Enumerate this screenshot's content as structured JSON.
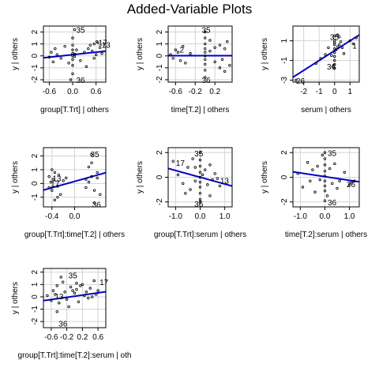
{
  "title": "Added-Variable Plots",
  "colors": {
    "line": "#0000CD",
    "grid": "#D3D3D3",
    "points": "#000000",
    "frame": "#000000"
  },
  "chart_data": [
    {
      "type": "scatter",
      "xlabel": "group[T.Trt] | others",
      "ylabel": "y | others",
      "xlim": [
        -0.75,
        0.85
      ],
      "ylim": [
        -2.2,
        2.5
      ],
      "xticks": [
        -0.6,
        0.0,
        0.6
      ],
      "xtick_labels": [
        "-0.6",
        "0.0",
        "0.6"
      ],
      "yticks": [
        -2,
        -1,
        0,
        1,
        2
      ],
      "ytick_labels": [
        "-2",
        "-1",
        "0",
        "1",
        "2"
      ],
      "grid": true,
      "fit_line": {
        "intercept": 0.1,
        "slope": 0.35
      },
      "x": [
        -0.6,
        -0.55,
        -0.5,
        -0.45,
        -0.4,
        -0.3,
        -0.2,
        -0.1,
        0,
        0,
        0,
        0,
        0,
        0,
        0,
        0,
        0.1,
        0.2,
        0.3,
        0.45,
        0.5,
        0.55,
        0.6,
        0.65,
        0.7,
        0.75,
        0.55,
        0.62,
        0.05,
        -0.05,
        0.35,
        0.4,
        0.05,
        0.05
      ],
      "y": [
        -0.1,
        0.3,
        -0.5,
        0.6,
        0.1,
        -0.2,
        0.8,
        -0.6,
        1.5,
        0.9,
        0.5,
        0.2,
        0,
        -0.3,
        -0.8,
        -1.5,
        0.5,
        -0.4,
        0.3,
        0.9,
        0.4,
        -0.2,
        0.1,
        1.1,
        0.7,
        0.2,
        1.0,
        1.2,
        2.2,
        -2.0,
        -0.9,
        0.6,
        0.15,
        -0.05
      ],
      "point_labels": [
        {
          "x": 0.05,
          "y": 2.2,
          "text": "35"
        },
        {
          "x": 0.62,
          "y": 1.15,
          "text": "17"
        },
        {
          "x": 0.7,
          "y": 0.95,
          "text": "13"
        },
        {
          "x": 0.05,
          "y": -2.0,
          "text": "36"
        }
      ]
    },
    {
      "type": "scatter",
      "xlabel": "time[T.2] | others",
      "ylabel": "y | others",
      "xlim": [
        -0.75,
        0.55
      ],
      "ylim": [
        -2.2,
        2.5
      ],
      "xticks": [
        -0.6,
        -0.2,
        0.2
      ],
      "xtick_labels": [
        "-0.6",
        "-0.2",
        "0.2"
      ],
      "yticks": [
        -2,
        -1,
        0,
        1,
        2
      ],
      "ytick_labels": [
        "-2",
        "-1",
        "0",
        "1",
        "2"
      ],
      "grid": true,
      "fit_line": {
        "intercept": 0.02,
        "slope": 0.0
      },
      "x": [
        -0.7,
        -0.65,
        -0.6,
        -0.55,
        -0.5,
        -0.45,
        -0.4,
        -0.3,
        0,
        0,
        0,
        0,
        0,
        0,
        0,
        0,
        0,
        0,
        0.1,
        0.2,
        0.3,
        0.35,
        0.4,
        0.45,
        0.5,
        0.3,
        0.1,
        0.2,
        0.4
      ],
      "y": [
        0.1,
        -0.2,
        0.5,
        0.3,
        -0.4,
        0.8,
        -0.6,
        0.2,
        2.0,
        1.5,
        1.0,
        0.6,
        0.3,
        0.0,
        -0.3,
        -0.7,
        -1.2,
        -1.8,
        0.4,
        -0.5,
        0.9,
        -0.3,
        0.6,
        1.2,
        -0.8,
        -1.0,
        1.3,
        0.7,
        -1.3
      ],
      "point_labels": [
        {
          "x": -0.1,
          "y": 2.2,
          "text": "35"
        },
        {
          "x": -0.55,
          "y": 0.55,
          "text": "2"
        },
        {
          "x": -0.1,
          "y": -2.0,
          "text": "36"
        }
      ]
    },
    {
      "type": "scatter",
      "xlabel": "serum | others",
      "ylabel": "y | others",
      "xlim": [
        -2.7,
        1.6
      ],
      "ylim": [
        -3.2,
        2.5
      ],
      "xticks": [
        -2,
        -1,
        0,
        1
      ],
      "xtick_labels": [
        "-2",
        "-1",
        "0",
        "1"
      ],
      "yticks": [
        -3,
        -1,
        1
      ],
      "ytick_labels": [
        "-3",
        "-1",
        "1"
      ],
      "grid": true,
      "fit_line": {
        "intercept": 0.0,
        "slope": 1.0
      },
      "x": [
        -2.5,
        -1.2,
        -0.9,
        -0.6,
        -0.4,
        -0.2,
        0,
        0,
        0,
        0,
        0,
        0,
        0,
        0,
        0,
        0,
        0.1,
        0.2,
        0.3,
        0.4,
        0.5,
        0.6,
        1.0,
        1.2,
        1.4,
        0.2,
        -0.1,
        0.3
      ],
      "y": [
        -3.0,
        -1.3,
        -0.8,
        -0.4,
        0.3,
        -0.5,
        1.5,
        1.0,
        0.6,
        0.2,
        -0.2,
        -0.6,
        -1.0,
        -1.4,
        -1.8,
        0.8,
        0.1,
        0.4,
        0.6,
        0.9,
        0.3,
        -0.3,
        1.0,
        0.7,
        1.3,
        1.6,
        -1.6,
        1.4
      ],
      "point_labels": [
        {
          "x": -0.4,
          "y": 1.4,
          "text": "35"
        },
        {
          "x": 1.05,
          "y": 0.55,
          "text": "1"
        },
        {
          "x": -0.6,
          "y": -1.6,
          "text": "36"
        },
        {
          "x": -2.6,
          "y": -3.05,
          "text": "26"
        }
      ]
    },
    {
      "type": "scatter",
      "xlabel": "group[T.Trt]:time[T.2] | others",
      "ylabel": "y | others",
      "xlim": [
        -0.55,
        0.55
      ],
      "ylim": [
        -1.7,
        2.6
      ],
      "xticks": [
        -0.4,
        0.0
      ],
      "xtick_labels": [
        "-0.4",
        "0.0"
      ],
      "yticks": [
        -1,
        0,
        1,
        2
      ],
      "ytick_labels": [
        "-1",
        "0",
        "1",
        "2"
      ],
      "grid": true,
      "fit_line": {
        "intercept": 0.15,
        "slope": 1.15
      },
      "x": [
        -0.45,
        -0.42,
        -0.4,
        -0.38,
        -0.35,
        -0.3,
        -0.28,
        -0.25,
        -0.2,
        -0.15,
        -0.35,
        -0.3,
        -0.4,
        -0.45,
        0.2,
        0.25,
        0.3,
        0.35,
        0.4,
        0.3,
        0.35,
        0.25,
        0.4,
        0.45,
        0.2,
        0.3
      ],
      "y": [
        0.5,
        0.1,
        -0.5,
        0.3,
        0.8,
        -0.2,
        0.6,
        -0.8,
        0.2,
        0.4,
        -1.2,
        -1.0,
        1.0,
        -0.3,
        0.3,
        1.2,
        0.5,
        -0.5,
        0.8,
        2.1,
        -1.4,
        0.1,
        0.4,
        -0.8,
        -0.3,
        1.5
      ],
      "point_labels": [
        {
          "x": 0.25,
          "y": 2.15,
          "text": "35"
        },
        {
          "x": -0.42,
          "y": 0.4,
          "text": "13"
        },
        {
          "x": -0.45,
          "y": 0.0,
          "text": "17"
        },
        {
          "x": 0.28,
          "y": -1.5,
          "text": "36"
        }
      ]
    },
    {
      "type": "scatter",
      "xlabel": "group[T.Trt]:serum | others",
      "ylabel": "y | others",
      "xlim": [
        -1.3,
        1.3
      ],
      "ylim": [
        -2.4,
        2.4
      ],
      "xticks": [
        -1.0,
        0.0,
        1.0
      ],
      "xtick_labels": [
        "-1.0",
        "0.0",
        "1.0"
      ],
      "yticks": [
        -2,
        0,
        2
      ],
      "ytick_labels": [
        "-2",
        "0",
        "2"
      ],
      "grid": true,
      "fit_line": {
        "intercept": 0.0,
        "slope": -0.55
      },
      "x": [
        -1.1,
        -0.9,
        -0.7,
        -0.5,
        -0.4,
        -0.3,
        -0.2,
        0,
        0,
        0,
        0,
        0,
        0,
        0,
        0,
        0,
        0,
        0.2,
        0.3,
        0.4,
        0.5,
        0.6,
        0.7,
        0.8,
        -0.6,
        -0.2,
        0.4,
        0.1
      ],
      "y": [
        1.3,
        0.2,
        -0.5,
        0.8,
        -1.0,
        1.5,
        -0.3,
        2.0,
        1.4,
        0.9,
        0.4,
        0.0,
        -0.4,
        -0.8,
        -1.3,
        -1.8,
        -2.0,
        0.6,
        -0.6,
        1.0,
        -0.2,
        0.3,
        -0.1,
        -0.7,
        -1.3,
        0.8,
        -1.5,
        0.2
      ],
      "point_labels": [
        {
          "x": -0.3,
          "y": 1.95,
          "text": "35"
        },
        {
          "x": -1.05,
          "y": 1.2,
          "text": "17"
        },
        {
          "x": 0.75,
          "y": -0.25,
          "text": "13"
        },
        {
          "x": -0.3,
          "y": -2.15,
          "text": "36"
        }
      ]
    },
    {
      "type": "scatter",
      "xlabel": "time[T.2]:serum | others",
      "ylabel": "y | others",
      "xlim": [
        -1.3,
        1.4
      ],
      "ylim": [
        -2.4,
        2.4
      ],
      "xticks": [
        -1.0,
        0.0,
        1.0
      ],
      "xtick_labels": [
        "-1.0",
        "0.0",
        "1.0"
      ],
      "yticks": [
        -2,
        0,
        2
      ],
      "ytick_labels": [
        "-2",
        "0",
        "2"
      ],
      "grid": true,
      "fit_line": {
        "intercept": 0.05,
        "slope": -0.3
      },
      "x": [
        -1.1,
        -0.9,
        -0.7,
        -0.6,
        -0.5,
        -0.4,
        -0.3,
        -0.2,
        0,
        0,
        0,
        0,
        0,
        0,
        0,
        0,
        0,
        0.2,
        0.3,
        0.4,
        0.6,
        0.8,
        1.0,
        1.1,
        1.2,
        0.1,
        -0.1,
        0.5
      ],
      "y": [
        0.3,
        -0.8,
        1.2,
        -0.3,
        0.6,
        -1.2,
        0.9,
        -0.2,
        2.0,
        1.5,
        1.0,
        0.5,
        0.1,
        -0.3,
        -0.7,
        -1.1,
        -1.9,
        0.7,
        -0.5,
        1.1,
        -0.3,
        0.4,
        -0.6,
        -0.4,
        -0.3,
        -1.5,
        1.8,
        -0.9
      ],
      "point_labels": [
        {
          "x": 0.05,
          "y": 2.0,
          "text": "35"
        },
        {
          "x": 0.82,
          "y": -0.55,
          "text": "26"
        },
        {
          "x": 0.05,
          "y": -2.0,
          "text": "36"
        }
      ]
    },
    {
      "type": "scatter",
      "xlabel": "group[T.Trt]:time[T.2]:serum | oth",
      "ylabel": "y | others",
      "xlim": [
        -0.8,
        0.8
      ],
      "ylim": [
        -2.5,
        2.3
      ],
      "xticks": [
        -0.6,
        -0.2,
        0.2,
        0.6
      ],
      "xtick_labels": [
        "-0.6",
        "-0.2",
        "0.2",
        "0.6"
      ],
      "yticks": [
        -2,
        -1,
        0,
        1,
        2
      ],
      "ytick_labels": [
        "-2",
        "-1",
        "0",
        "1",
        "2"
      ],
      "grid": true,
      "fit_line": {
        "intercept": 0.05,
        "slope": 0.45
      },
      "x": [
        -0.7,
        -0.6,
        -0.55,
        -0.5,
        -0.45,
        -0.4,
        -0.3,
        -0.25,
        -0.2,
        -0.1,
        0,
        0.05,
        0.1,
        0.15,
        0.2,
        0.3,
        0.35,
        0.4,
        0.5,
        0.55,
        0.6,
        -0.35,
        -0.15,
        0.25,
        0.45,
        -0.45,
        0.05,
        -0.05
      ],
      "y": [
        0.1,
        -0.3,
        0.5,
        0.2,
        0.9,
        -0.5,
        1.2,
        0.4,
        -0.2,
        0.8,
        0.3,
        0.6,
        -0.4,
        0.9,
        1.0,
        0.4,
        -0.1,
        0.7,
        1.3,
        0.2,
        0.5,
        1.6,
        -0.8,
        0.1,
        0.0,
        -1.2,
        1.1,
        0.5
      ],
      "point_labels": [
        {
          "x": -0.2,
          "y": 1.75,
          "text": "35"
        },
        {
          "x": 0.6,
          "y": 1.2,
          "text": "17"
        },
        {
          "x": -0.55,
          "y": 0.05,
          "text": "13"
        },
        {
          "x": -0.45,
          "y": -2.15,
          "text": "36"
        }
      ]
    }
  ]
}
